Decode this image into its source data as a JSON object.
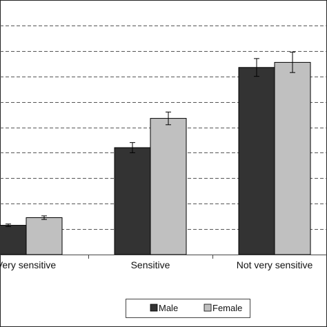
{
  "chart_data": {
    "type": "bar",
    "categories": [
      "Very sensitive",
      "Sensitive",
      "Not very sensitive"
    ],
    "series": [
      {
        "name": "Male",
        "color": "#333333",
        "values": [
          1.15,
          4.2,
          7.35
        ],
        "errors": [
          0.05,
          0.2,
          0.35
        ]
      },
      {
        "name": "Female",
        "color": "#c0c0c0",
        "values": [
          1.45,
          5.35,
          7.55
        ],
        "errors": [
          0.07,
          0.25,
          0.4
        ]
      }
    ],
    "ylim": [
      0,
      10
    ],
    "ygrid_step": 1,
    "grid": true,
    "legend_position": "bottom"
  }
}
